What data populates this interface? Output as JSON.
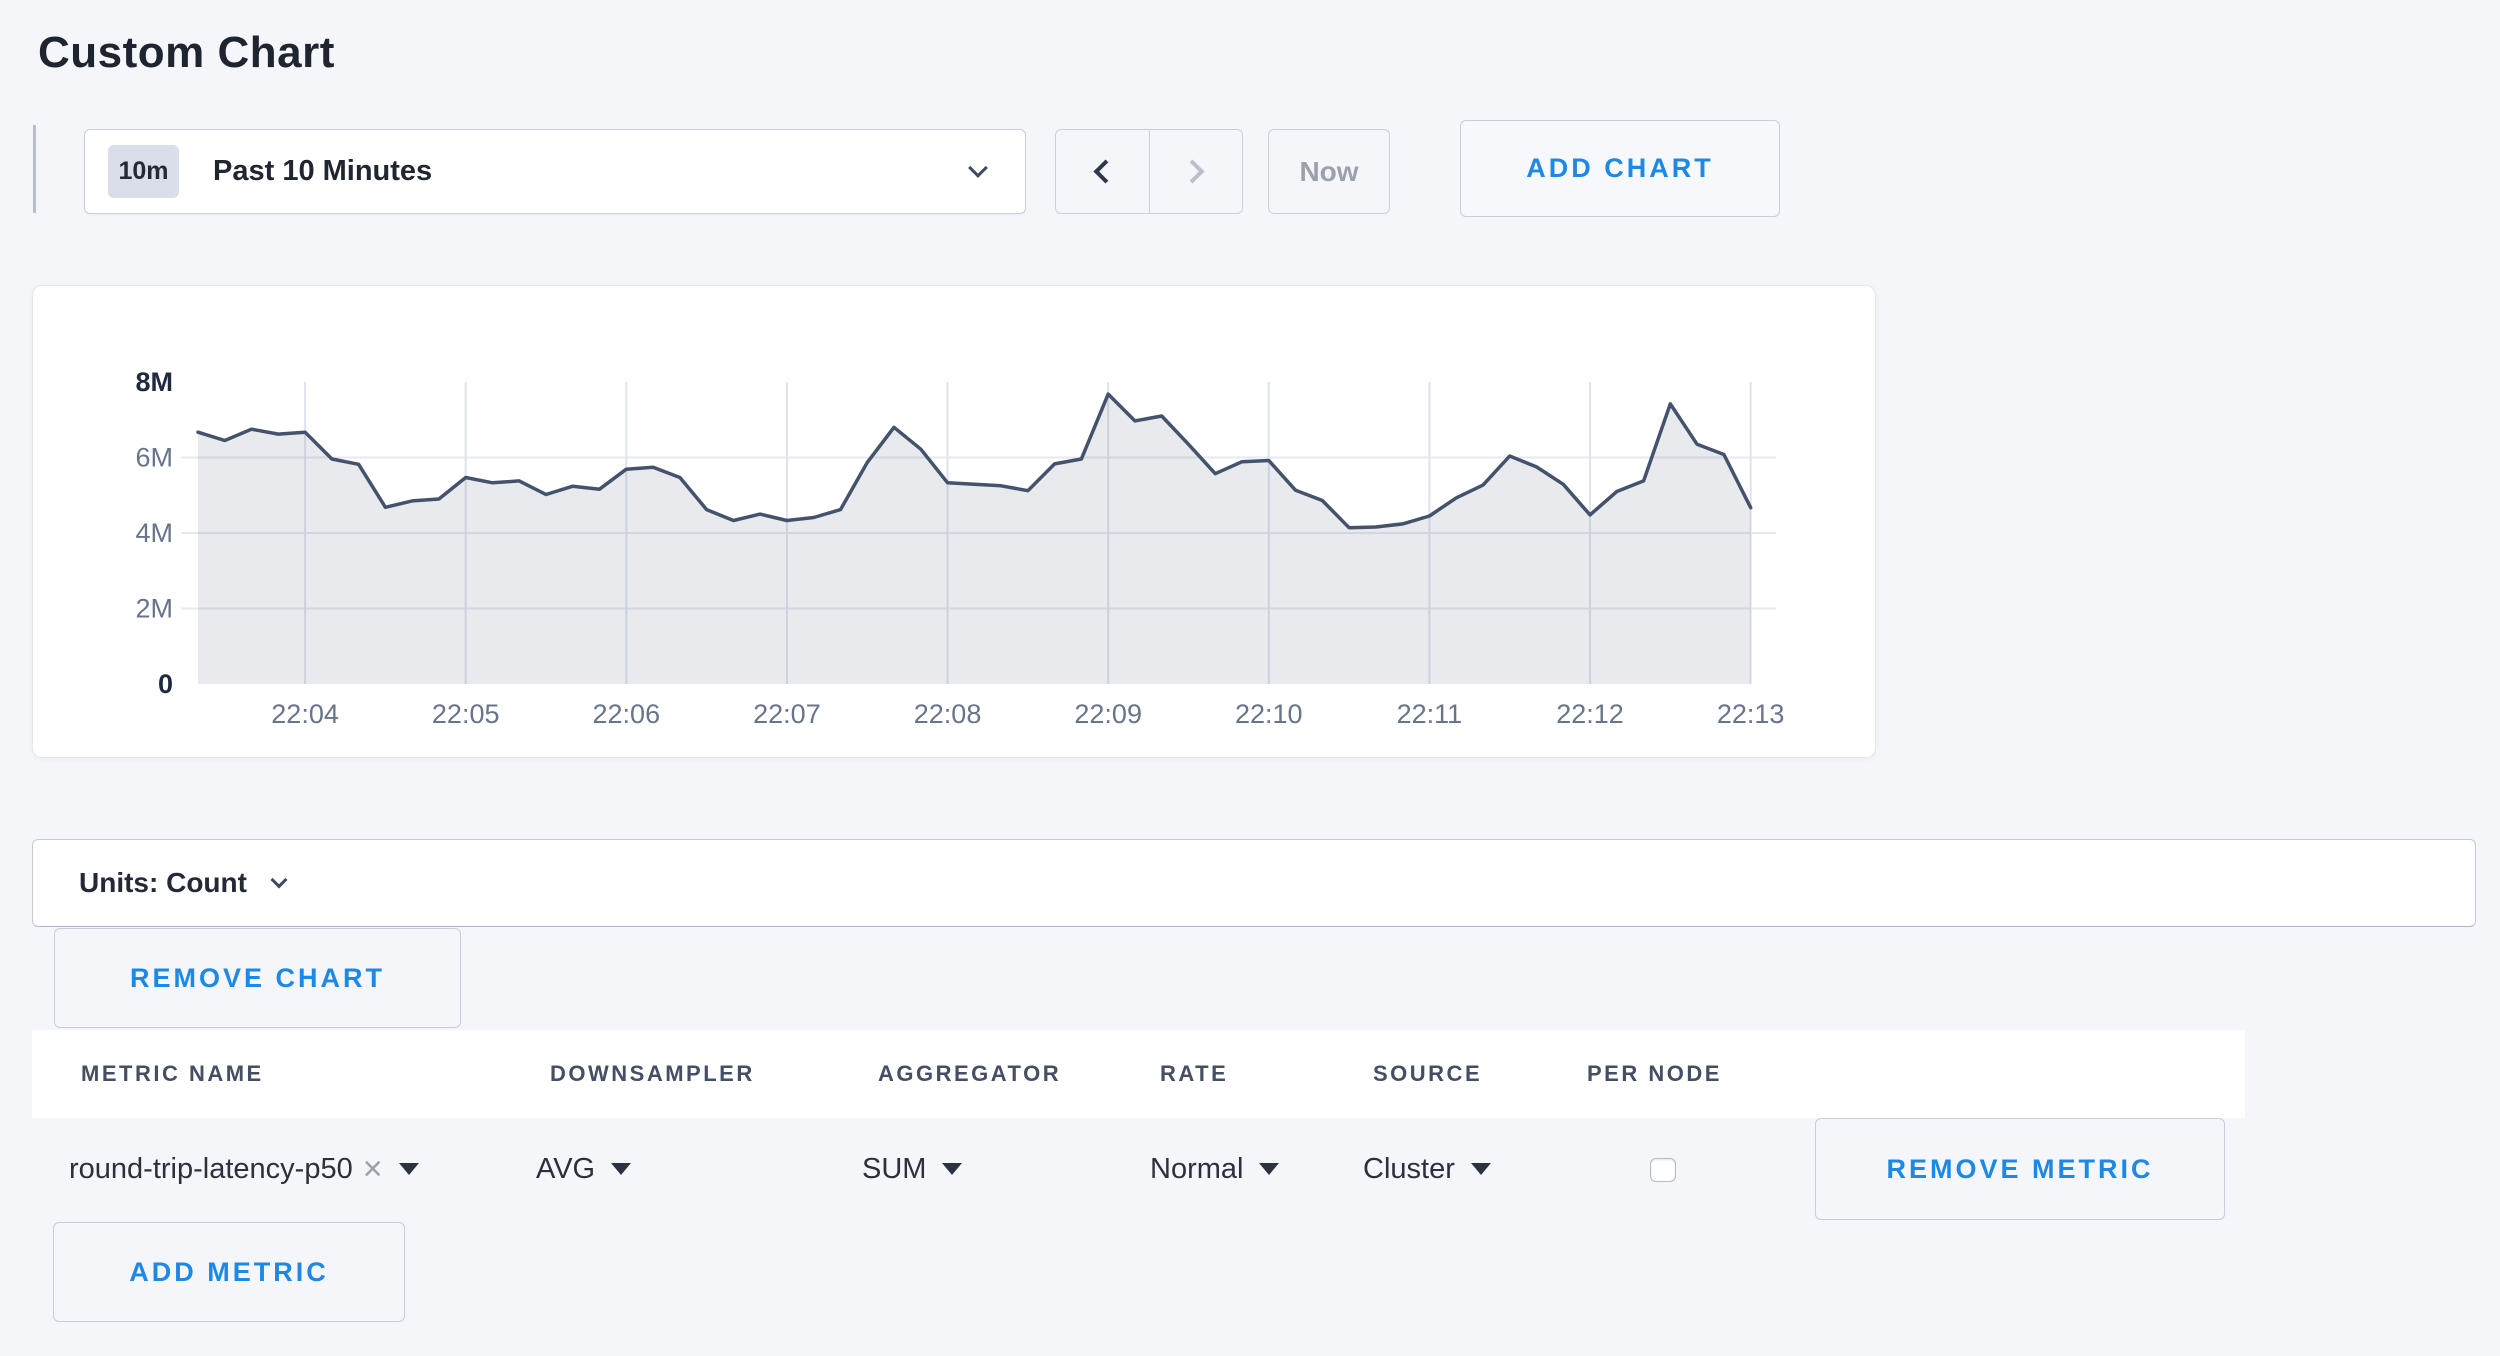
{
  "page": {
    "title": "Custom Chart",
    "background": "#f5f6fa",
    "accent_blue": "#1e88e5"
  },
  "toolbar": {
    "time_range": {
      "badge": "10m",
      "label": "Past 10 Minutes"
    },
    "now_label": "Now",
    "add_chart_label": "ADD CHART"
  },
  "chart_data": {
    "type": "area",
    "title": "",
    "xlabel": "",
    "ylabel": "",
    "unit": "count",
    "x_ticks": [
      "22:04",
      "22:05",
      "22:06",
      "22:07",
      "22:08",
      "22:09",
      "22:10",
      "22:11",
      "22:12",
      "22:13"
    ],
    "y_ticks": [
      "0",
      "2M",
      "4M",
      "6M",
      "8M"
    ],
    "ylim_millions": [
      0,
      8
    ],
    "grid": true,
    "legend": "none",
    "line_color": "#45526b",
    "fill_color": "rgba(69,82,107,0.12)",
    "series": [
      {
        "name": "round-trip-latency-p50",
        "start_time": "22:03:20",
        "interval_seconds": 10,
        "values_millions": [
          6.67,
          6.45,
          6.75,
          6.62,
          6.67,
          5.96,
          5.82,
          4.68,
          4.85,
          4.9,
          5.47,
          5.33,
          5.38,
          5.02,
          5.24,
          5.16,
          5.69,
          5.74,
          5.47,
          4.62,
          4.33,
          4.5,
          4.33,
          4.41,
          4.62,
          5.87,
          6.8,
          6.22,
          5.33,
          5.29,
          5.25,
          5.12,
          5.83,
          5.96,
          7.68,
          6.97,
          7.1,
          6.35,
          5.57,
          5.89,
          5.92,
          5.13,
          4.86,
          4.14,
          4.16,
          4.24,
          4.45,
          4.93,
          5.27,
          6.04,
          5.75,
          5.29,
          4.48,
          5.1,
          5.38,
          7.42,
          6.35,
          6.08,
          4.67
        ]
      }
    ]
  },
  "units_bar": {
    "label": "Units: Count"
  },
  "chart_actions": {
    "remove_chart_label": "REMOVE CHART",
    "add_metric_label": "ADD METRIC"
  },
  "metrics_table": {
    "headers": [
      "METRIC NAME",
      "DOWNSAMPLER",
      "AGGREGATOR",
      "RATE",
      "SOURCE",
      "PER NODE"
    ],
    "rows": [
      {
        "metric_name": "round-trip-latency-p50",
        "remove_tag": "×",
        "downsampler": "AVG",
        "aggregator": "SUM",
        "rate": "Normal",
        "source": "Cluster",
        "per_node_checked": false,
        "remove_label": "REMOVE METRIC"
      }
    ]
  }
}
